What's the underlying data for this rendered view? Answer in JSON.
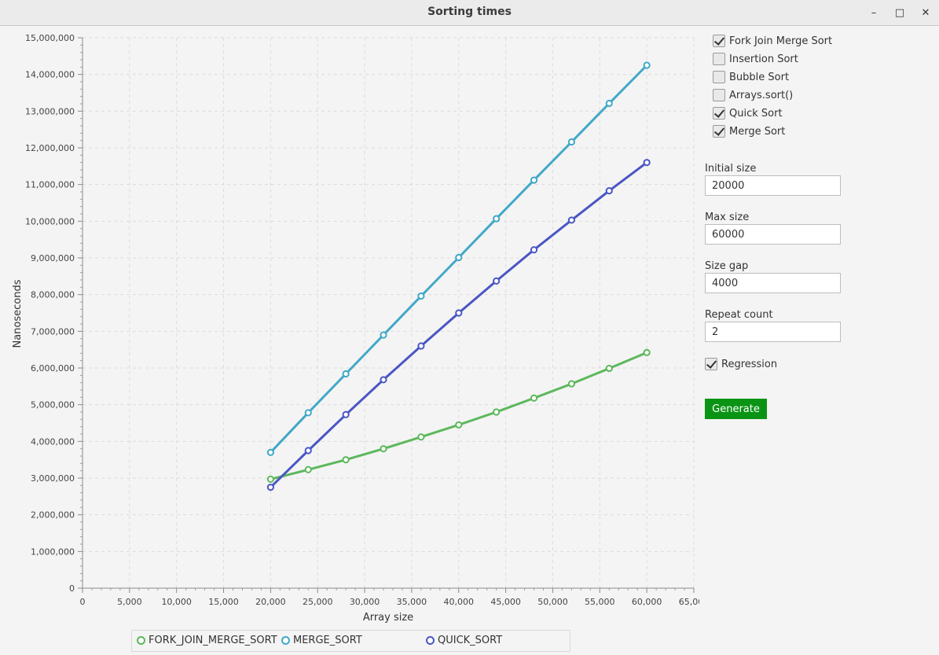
{
  "window": {
    "title": "Sorting times",
    "minimize_glyph": "–",
    "maximize_glyph": "□",
    "close_glyph": "✕"
  },
  "panel": {
    "checkboxes": [
      {
        "label": "Fork Join Merge Sort",
        "checked": true
      },
      {
        "label": "Insertion Sort",
        "checked": false
      },
      {
        "label": "Bubble Sort",
        "checked": false
      },
      {
        "label": "Arrays.sort()",
        "checked": false
      },
      {
        "label": "Quick Sort",
        "checked": true
      },
      {
        "label": "Merge Sort",
        "checked": true
      }
    ],
    "initial_size": {
      "label": "Initial size",
      "value": "20000"
    },
    "max_size": {
      "label": "Max size",
      "value": "60000"
    },
    "size_gap": {
      "label": "Size gap",
      "value": "4000"
    },
    "repeat_count": {
      "label": "Repeat count",
      "value": "2"
    },
    "regression": {
      "label": "Regression",
      "checked": true
    },
    "generate_label": "Generate"
  },
  "chart_data": {
    "type": "line",
    "xlabel": "Array size",
    "ylabel": "Nanoseconds",
    "xlim": [
      0,
      65000
    ],
    "ylim": [
      0,
      15000000
    ],
    "x_tick_step": 5000,
    "y_tick_step": 1000000,
    "grid": true,
    "legend_position": "bottom",
    "x": [
      20000,
      24000,
      28000,
      32000,
      36000,
      40000,
      44000,
      48000,
      52000,
      56000,
      60000
    ],
    "series": [
      {
        "name": "FORK_JOIN_MERGE_SORT",
        "color": "#5cb85c",
        "values": [
          2970000,
          3230000,
          3500000,
          3800000,
          4120000,
          4450000,
          4800000,
          5180000,
          5570000,
          5990000,
          6420000
        ]
      },
      {
        "name": "MERGE_SORT",
        "color": "#41a8c8",
        "values": [
          3700000,
          4780000,
          5840000,
          6900000,
          7960000,
          9010000,
          10070000,
          11120000,
          12160000,
          13210000,
          14250000
        ]
      },
      {
        "name": "QUICK_SORT",
        "color": "#4a56c4",
        "values": [
          2750000,
          3750000,
          4730000,
          5680000,
          6600000,
          7500000,
          8370000,
          9220000,
          10030000,
          10830000,
          11600000
        ]
      }
    ]
  }
}
